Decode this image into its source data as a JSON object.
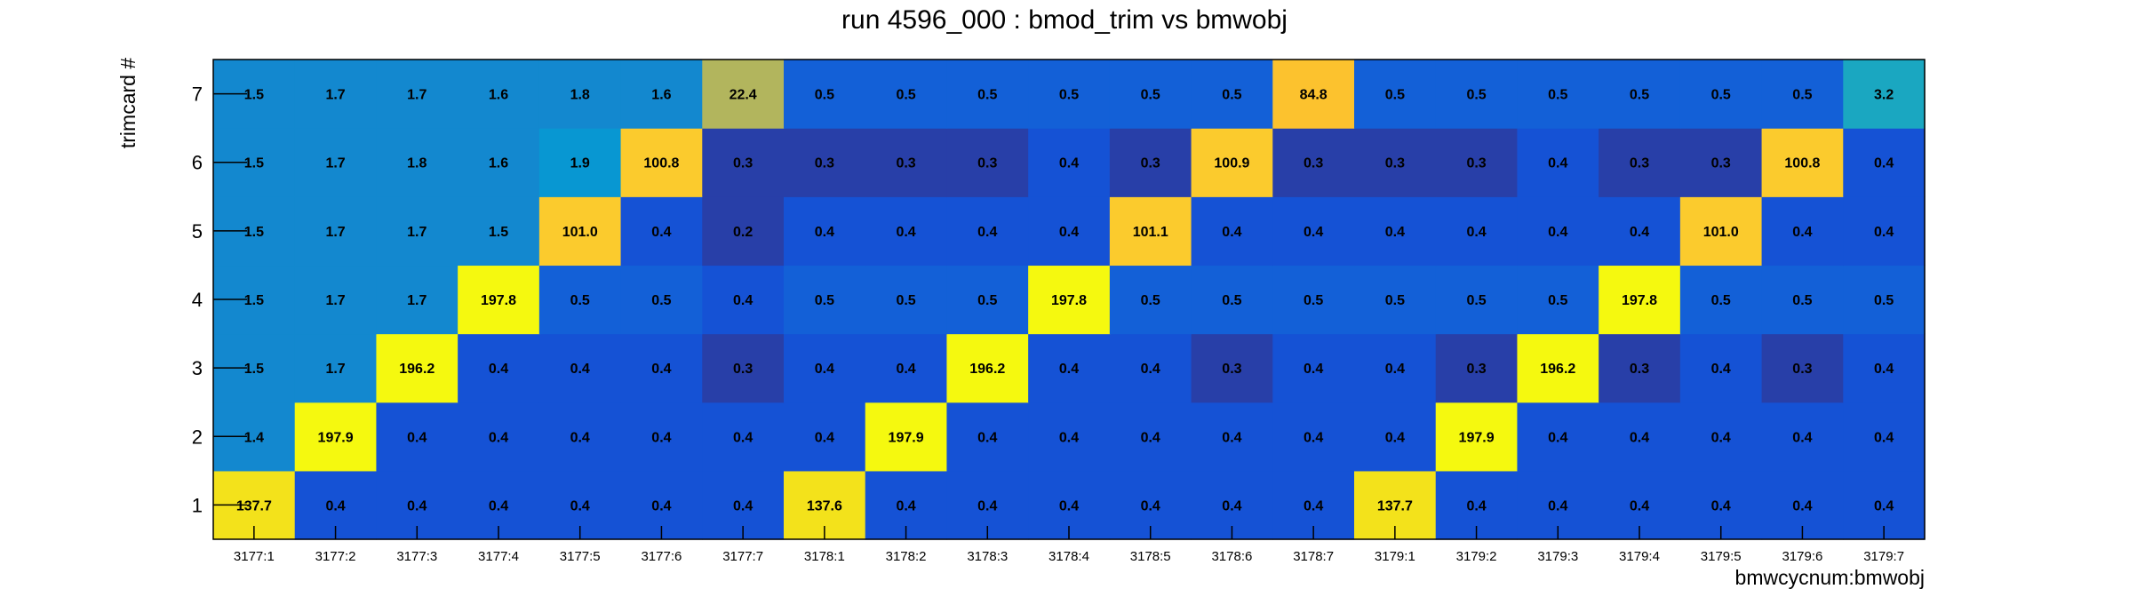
{
  "chart_data": {
    "type": "heatmap",
    "title": "run 4596_000 : bmod_trim vs bmwobj",
    "xlabel": "bmwcycnum:bmwobj",
    "ylabel": "trimcard #",
    "x_categories": [
      "3177:1",
      "3177:2",
      "3177:3",
      "3177:4",
      "3177:5",
      "3177:6",
      "3177:7",
      "3178:1",
      "3178:2",
      "3178:3",
      "3178:4",
      "3178:5",
      "3178:6",
      "3178:7",
      "3179:1",
      "3179:2",
      "3179:3",
      "3179:4",
      "3179:5",
      "3179:6",
      "3179:7"
    ],
    "y_categories": [
      "1",
      "2",
      "3",
      "4",
      "5",
      "6",
      "7"
    ],
    "values": [
      [
        "137.7",
        "0.4",
        "0.4",
        "0.4",
        "0.4",
        "0.4",
        "0.4",
        "137.6",
        "0.4",
        "0.4",
        "0.4",
        "0.4",
        "0.4",
        "0.4",
        "137.7",
        "0.4",
        "0.4",
        "0.4",
        "0.4",
        "0.4",
        "0.4"
      ],
      [
        "1.4",
        "197.9",
        "0.4",
        "0.4",
        "0.4",
        "0.4",
        "0.4",
        "0.4",
        "197.9",
        "0.4",
        "0.4",
        "0.4",
        "0.4",
        "0.4",
        "0.4",
        "197.9",
        "0.4",
        "0.4",
        "0.4",
        "0.4",
        "0.4"
      ],
      [
        "1.5",
        "1.7",
        "196.2",
        "0.4",
        "0.4",
        "0.4",
        "0.3",
        "0.4",
        "0.4",
        "196.2",
        "0.4",
        "0.4",
        "0.3",
        "0.4",
        "0.4",
        "0.3",
        "196.2",
        "0.3",
        "0.4",
        "0.3",
        "0.4"
      ],
      [
        "1.5",
        "1.7",
        "1.7",
        "197.8",
        "0.5",
        "0.5",
        "0.4",
        "0.5",
        "0.5",
        "0.5",
        "197.8",
        "0.5",
        "0.5",
        "0.5",
        "0.5",
        "0.5",
        "0.5",
        "197.8",
        "0.5",
        "0.5",
        "0.5"
      ],
      [
        "1.5",
        "1.7",
        "1.7",
        "1.5",
        "101.0",
        "0.4",
        "0.2",
        "0.4",
        "0.4",
        "0.4",
        "0.4",
        "101.1",
        "0.4",
        "0.4",
        "0.4",
        "0.4",
        "0.4",
        "0.4",
        "101.0",
        "0.4",
        "0.4"
      ],
      [
        "1.5",
        "1.7",
        "1.8",
        "1.6",
        "1.9",
        "100.8",
        "0.3",
        "0.3",
        "0.3",
        "0.3",
        "0.4",
        "0.3",
        "100.9",
        "0.3",
        "0.3",
        "0.3",
        "0.4",
        "0.3",
        "0.3",
        "100.8",
        "0.4"
      ],
      [
        "1.5",
        "1.7",
        "1.7",
        "1.6",
        "1.8",
        "1.6",
        "22.4",
        "0.5",
        "0.5",
        "0.5",
        "0.5",
        "0.5",
        "0.5",
        "84.8",
        "0.5",
        "0.5",
        "0.5",
        "0.5",
        "0.5",
        "0.5",
        "3.2"
      ]
    ]
  }
}
